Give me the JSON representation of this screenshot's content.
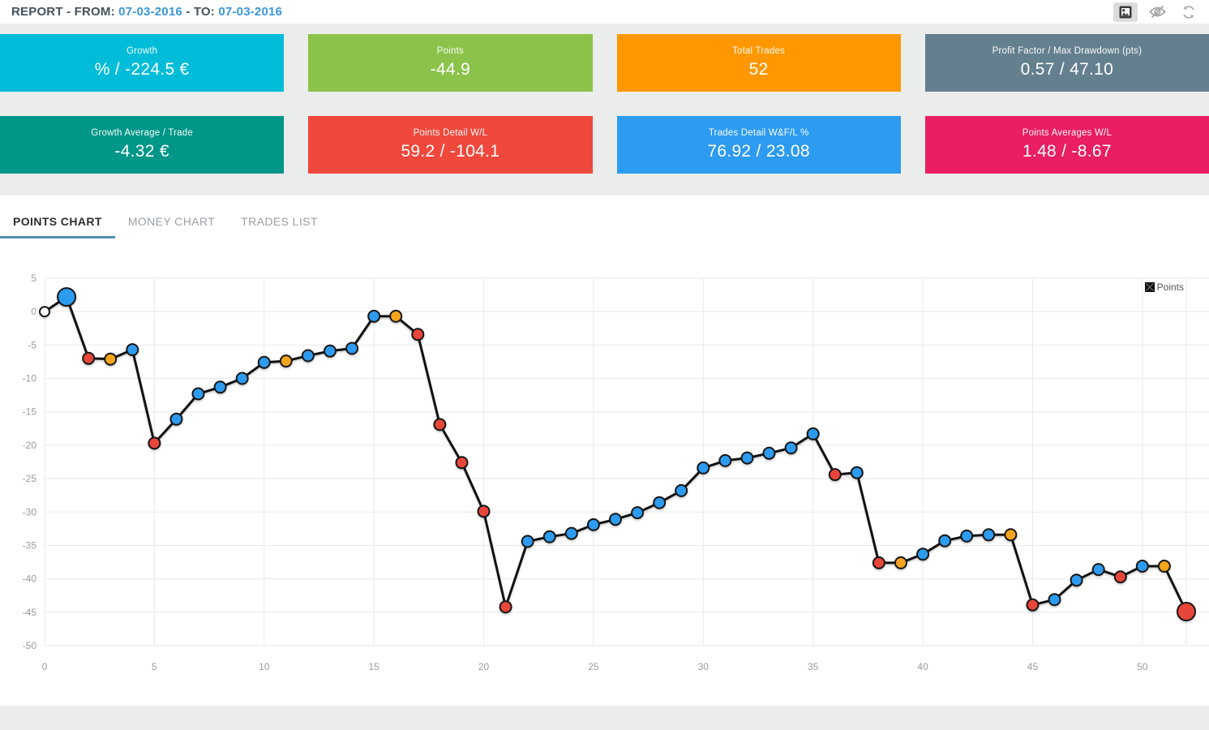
{
  "header": {
    "label_report": "REPORT - FROM:",
    "from_date": "07-03-2016",
    "label_to": "- TO:",
    "to_date": "07-03-2016",
    "icons": [
      "image-snapshot-icon",
      "visibility-off-icon",
      "refresh-icon"
    ]
  },
  "cards": [
    {
      "label": "Growth",
      "value": "% / -224.5 €",
      "color": "#00bcd8"
    },
    {
      "label": "Points",
      "value": "-44.9",
      "color": "#8bc34a"
    },
    {
      "label": "Total Trades",
      "value": "52",
      "color": "#ff9800"
    },
    {
      "label": "Profit Factor / Max Drawdown (pts)",
      "value": "0.57 / 47.10",
      "color": "#64808f"
    },
    {
      "label": "Growth Average / Trade",
      "value": "-4.32 €",
      "color": "#009688"
    },
    {
      "label": "Points Detail W/L",
      "value": "59.2 / -104.1",
      "color": "#f0483c"
    },
    {
      "label": "Trades Detail W&F/L %",
      "value": "76.92 / 23.08",
      "color": "#2d9bf0"
    },
    {
      "label": "Points Averages W/L",
      "value": "1.48 / -8.67",
      "color": "#e91e63"
    }
  ],
  "tabs": [
    {
      "label": "POINTS CHART",
      "active": true
    },
    {
      "label": "MONEY CHART",
      "active": false
    },
    {
      "label": "TRADES LIST",
      "active": false
    }
  ],
  "chart_data": {
    "type": "line",
    "title": "",
    "xlabel": "",
    "ylabel": "",
    "xlim": [
      0,
      52
    ],
    "ylim": [
      -50,
      5
    ],
    "grid": true,
    "x_ticks": [
      0,
      5,
      10,
      15,
      20,
      25,
      30,
      35,
      40,
      45,
      50
    ],
    "x_grid": [
      0,
      5,
      10,
      15,
      20,
      25,
      30,
      35,
      40,
      45,
      50,
      52
    ],
    "y_ticks": [
      5,
      0,
      -5,
      -10,
      -15,
      -20,
      -25,
      -30,
      -35,
      -40,
      -45,
      -50
    ],
    "legend": {
      "position": "top-right",
      "items": [
        {
          "label": "Points",
          "marker_color": "#111111"
        }
      ]
    },
    "line_color": "#111111",
    "marker_palette": {
      "blue": "#2d9bf0",
      "red": "#e8463a",
      "orange": "#f5a51d",
      "white": "#ffffff"
    },
    "series": [
      {
        "name": "Points",
        "x": [
          0,
          1,
          2,
          3,
          4,
          5,
          6,
          7,
          8,
          9,
          10,
          11,
          12,
          13,
          14,
          15,
          16,
          17,
          18,
          19,
          20,
          21,
          22,
          23,
          24,
          25,
          26,
          27,
          28,
          29,
          30,
          31,
          32,
          33,
          34,
          35,
          36,
          37,
          38,
          39,
          40,
          41,
          42,
          43,
          44,
          45,
          46,
          47,
          48,
          49,
          50,
          51,
          52
        ],
        "y": [
          0,
          2.2,
          -7.0,
          -7.1,
          -5.7,
          -19.7,
          -16.1,
          -12.3,
          -11.3,
          -10.0,
          -7.6,
          -7.4,
          -6.6,
          -5.9,
          -5.5,
          -0.7,
          -0.7,
          -3.4,
          -16.9,
          -22.6,
          -29.9,
          -44.2,
          -34.4,
          -33.7,
          -33.2,
          -31.9,
          -31.1,
          -30.1,
          -28.6,
          -26.8,
          -23.4,
          -22.3,
          -21.9,
          -21.2,
          -20.4,
          -18.3,
          -24.4,
          -24.1,
          -37.6,
          -37.6,
          -36.3,
          -34.3,
          -33.6,
          -33.4,
          -33.4,
          -43.9,
          -43.1,
          -40.2,
          -38.6,
          -39.7,
          -38.1,
          -38.1,
          -44.9
        ],
        "point_colors": [
          "white",
          "blue",
          "red",
          "orange",
          "blue",
          "red",
          "blue",
          "blue",
          "blue",
          "blue",
          "blue",
          "orange",
          "blue",
          "blue",
          "blue",
          "blue",
          "orange",
          "red",
          "red",
          "red",
          "red",
          "red",
          "blue",
          "blue",
          "blue",
          "blue",
          "blue",
          "blue",
          "blue",
          "blue",
          "blue",
          "blue",
          "blue",
          "blue",
          "blue",
          "blue",
          "red",
          "blue",
          "red",
          "orange",
          "blue",
          "blue",
          "blue",
          "blue",
          "orange",
          "red",
          "blue",
          "blue",
          "blue",
          "red",
          "blue",
          "orange",
          "red"
        ],
        "large_points": [
          1,
          52
        ]
      }
    ]
  }
}
